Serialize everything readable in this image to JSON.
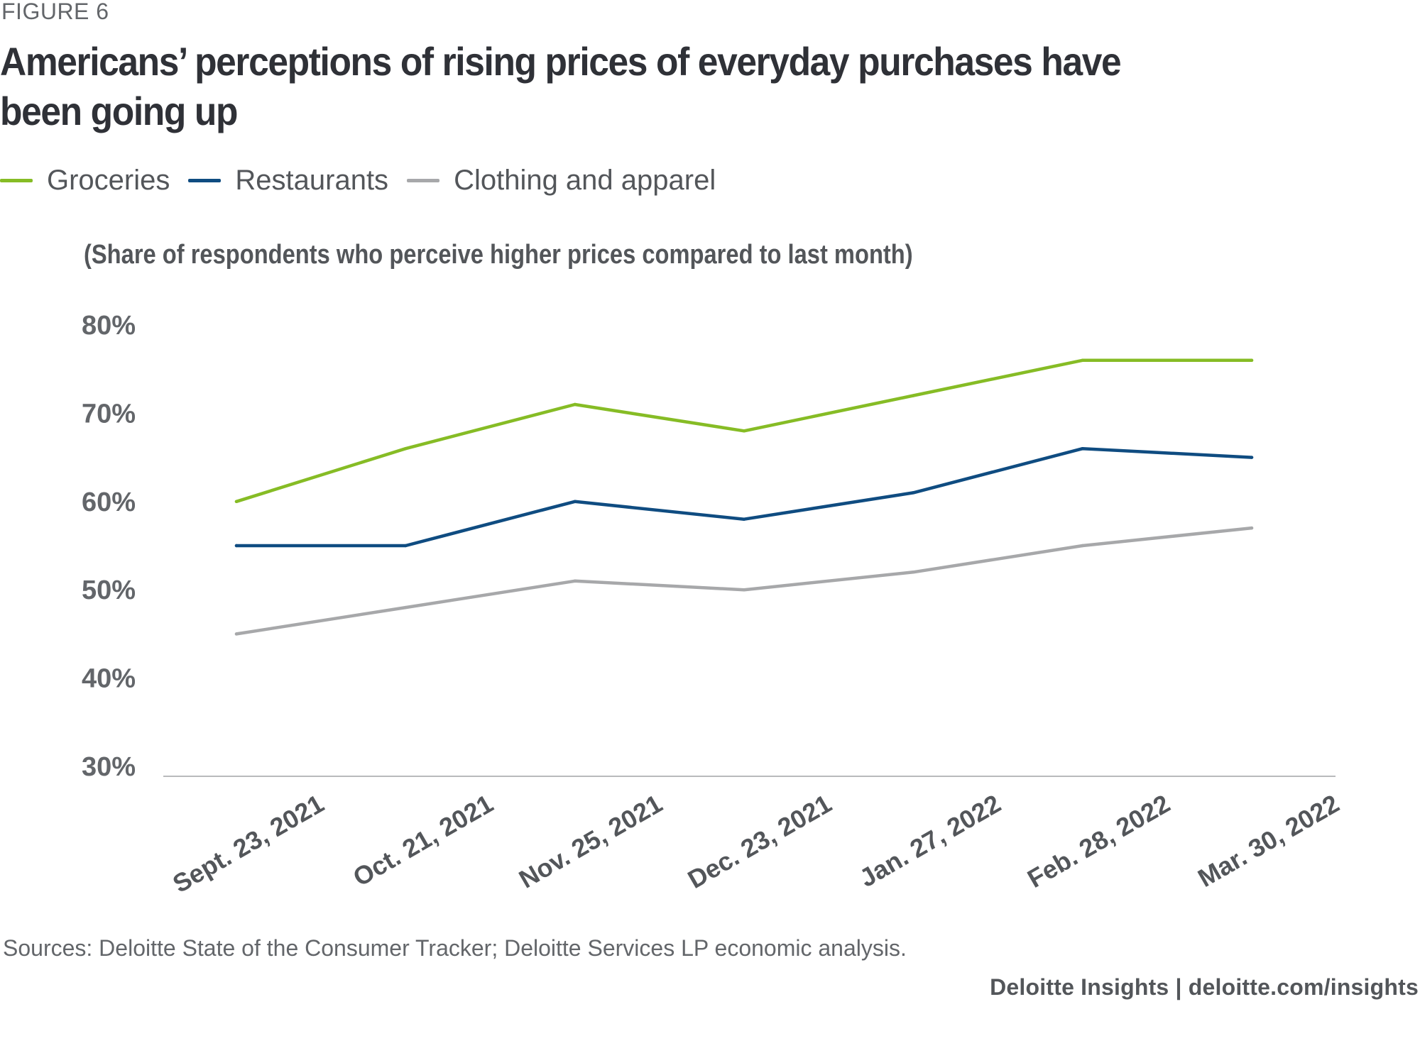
{
  "figure_label": "FIGURE 6",
  "title": "Americans’ perceptions of rising prices of everyday purchases have been going up",
  "subtitle": "(Share of respondents who perceive higher prices compared to last month)",
  "legend": [
    {
      "name": "Groceries",
      "color": "#86bc25"
    },
    {
      "name": "Restaurants",
      "color": "#0f4c81"
    },
    {
      "name": "Clothing and apparel",
      "color": "#a7a8aa"
    }
  ],
  "sources": "Sources: Deloitte State of the Consumer Tracker; Deloitte Services LP economic analysis.",
  "credit": "Deloitte Insights | deloitte.com/insights",
  "chart_data": {
    "type": "line",
    "title": "Americans’ perceptions of rising prices of everyday purchases have been going up",
    "subtitle": "(Share of respondents who perceive higher prices compared to last month)",
    "xlabel": "",
    "ylabel": "",
    "categories": [
      "Sept. 23, 2021",
      "Oct. 21, 2021",
      "Nov. 25, 2021",
      "Dec. 23, 2021",
      "Jan. 27, 2022",
      "Feb. 28, 2022",
      "Mar. 30, 2022"
    ],
    "ylim": [
      30,
      80
    ],
    "yticks": [
      30,
      40,
      50,
      60,
      70,
      80
    ],
    "ytick_labels": [
      "30%",
      "40%",
      "50%",
      "60%",
      "70%",
      "80%"
    ],
    "grid": false,
    "legend_position": "top-left",
    "series": [
      {
        "name": "Groceries",
        "color": "#86bc25",
        "values": [
          60,
          66,
          71,
          68,
          72,
          76,
          76
        ]
      },
      {
        "name": "Restaurants",
        "color": "#0f4c81",
        "values": [
          55,
          55,
          60,
          58,
          61,
          66,
          65
        ]
      },
      {
        "name": "Clothing and apparel",
        "color": "#a7a8aa",
        "values": [
          45,
          48,
          51,
          50,
          52,
          55,
          57
        ]
      }
    ]
  }
}
